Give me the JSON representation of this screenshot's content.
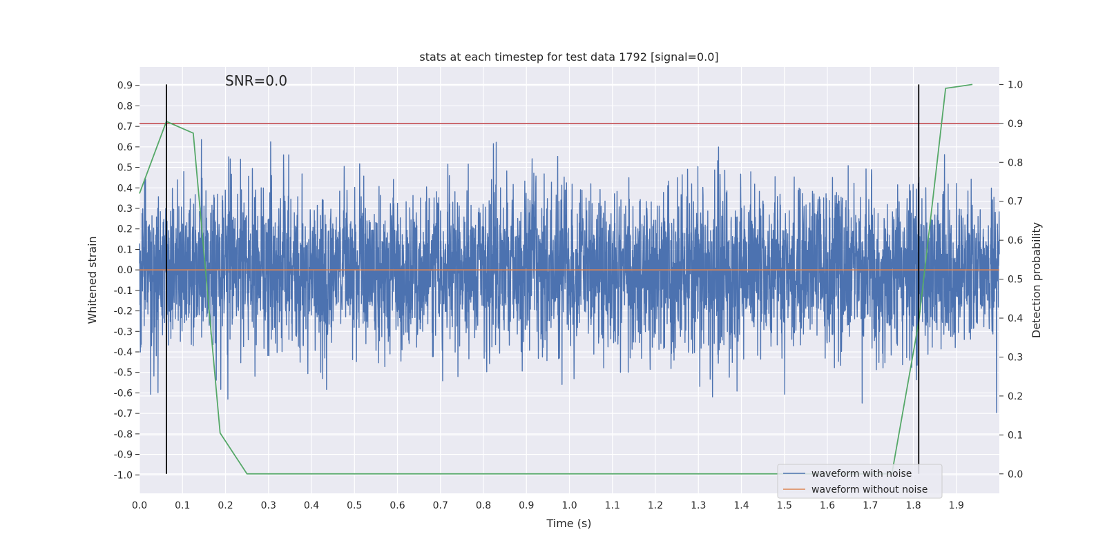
{
  "chart_data": {
    "type": "line",
    "title": "stats at each timestep for test data 1792 [signal=0.0]",
    "xlabel": "Time (s)",
    "ylabel": "Whitened strain",
    "y2label": "Detection probability",
    "xlim": [
      0.0,
      2.0
    ],
    "ylim": [
      -1.09,
      0.99
    ],
    "y2lim": [
      -0.05,
      1.045
    ],
    "xticks": [
      0.0,
      0.1,
      0.2,
      0.3,
      0.4,
      0.5,
      0.6,
      0.7,
      0.8,
      0.9,
      1.0,
      1.1,
      1.2,
      1.3,
      1.4,
      1.5,
      1.6,
      1.7,
      1.8,
      1.9
    ],
    "yticks": [
      -1.0,
      -0.9,
      -0.8,
      -0.7,
      -0.6,
      -0.5,
      -0.4,
      -0.3,
      -0.2,
      -0.1,
      0.0,
      0.1,
      0.2,
      0.3,
      0.4,
      0.5,
      0.6,
      0.7,
      0.8,
      0.9
    ],
    "y2ticks": [
      0.0,
      0.1,
      0.2,
      0.3,
      0.4,
      0.5,
      0.6,
      0.7,
      0.8,
      0.9,
      1.0
    ],
    "grid": true,
    "legend_position": "bottom-right",
    "annotation": "SNR=0.0",
    "series": [
      {
        "name": "waveform with noise",
        "color": "#4c72b0",
        "axis": "left",
        "kind": "noise",
        "n_samples": 4000,
        "std": 0.2,
        "range": [
          -1.0,
          0.9
        ]
      },
      {
        "name": "waveform without noise",
        "color": "#dd8452",
        "axis": "left",
        "x": [
          0.0,
          2.0
        ],
        "y": [
          0.0,
          0.0
        ]
      },
      {
        "name": "detection probability",
        "color": "#55a868",
        "axis": "right",
        "in_legend": false,
        "x": [
          0.0,
          0.0625,
          0.125,
          0.1875,
          0.25,
          0.3125,
          1.5,
          1.6875,
          1.75,
          1.8125,
          1.875,
          1.9375
        ],
        "y": [
          0.72,
          0.905,
          0.875,
          0.105,
          0.0,
          0.0,
          0.0,
          0.0,
          0.0,
          0.39,
          0.99,
          1.0
        ]
      }
    ],
    "threshold_line": {
      "value": 0.9,
      "axis": "right",
      "color": "#c44e52"
    },
    "vertical_markers": {
      "x": [
        0.0625,
        1.8125
      ],
      "from": 0.0,
      "to": 1.0,
      "axis": "right",
      "color": "#000000"
    }
  }
}
